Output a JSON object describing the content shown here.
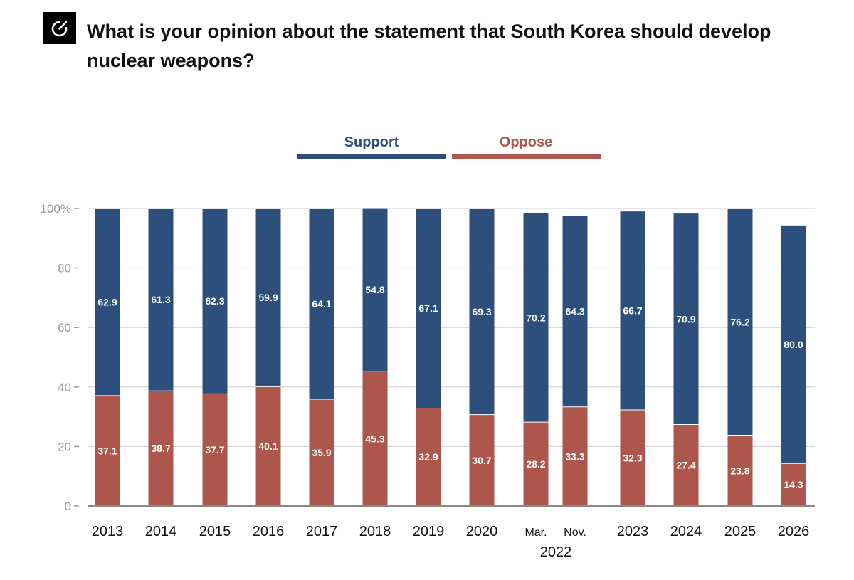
{
  "header": {
    "title": "What is your opinion about the statement that South Korea should develop nuclear weapons?",
    "logo_icon": "circular-arrow-icon"
  },
  "colors": {
    "support": "#2d4f7c",
    "oppose": "#ad564b",
    "grid": "#cfcfcf",
    "axis": "#8a8a8a",
    "ticks": "#9a9a9a"
  },
  "chart_data": {
    "type": "bar",
    "stacked": true,
    "categories": [
      "2013",
      "2014",
      "2015",
      "2016",
      "2017",
      "2018",
      "2019",
      "2020",
      "Mar. 2022",
      "Nov. 2022",
      "2023",
      "2024",
      "2025",
      "2026"
    ],
    "category_labels": [
      "2013",
      "2014",
      "2015",
      "2016",
      "2017",
      "2018",
      "2019",
      "2020",
      "Mar.",
      "Nov.",
      "2023",
      "2024",
      "2025",
      "2026"
    ],
    "group_label": "2022",
    "series": [
      {
        "name": "Support",
        "values": [
          62.9,
          61.3,
          62.3,
          59.9,
          64.1,
          54.8,
          67.1,
          69.3,
          70.2,
          64.3,
          66.7,
          70.9,
          76.2,
          80.0
        ],
        "labels": [
          "62.9",
          "61.3",
          "62.3",
          "59.9",
          "64.1",
          "54.8",
          "67.1",
          "69.3",
          "70.2",
          "64.3",
          "66.7",
          "70.9",
          "76.2",
          "80.0"
        ]
      },
      {
        "name": "Oppose",
        "values": [
          37.1,
          38.7,
          37.7,
          40.1,
          35.9,
          45.3,
          32.9,
          30.7,
          28.2,
          33.3,
          32.3,
          27.4,
          23.8,
          14.3
        ],
        "labels": [
          "37.1",
          "38.7",
          "37.7",
          "40.1",
          "35.9",
          "45.3",
          "32.9",
          "30.7",
          "28.2",
          "33.3",
          "32.3",
          "27.4",
          "23.8",
          "14.3"
        ]
      }
    ],
    "ylim": [
      0,
      100
    ],
    "yticks": [
      0,
      20,
      40,
      60,
      80,
      100
    ],
    "ytick_labels": [
      "0",
      "20",
      "40",
      "60",
      "80",
      "100%"
    ],
    "legend_position": "top-center",
    "grid": true
  }
}
